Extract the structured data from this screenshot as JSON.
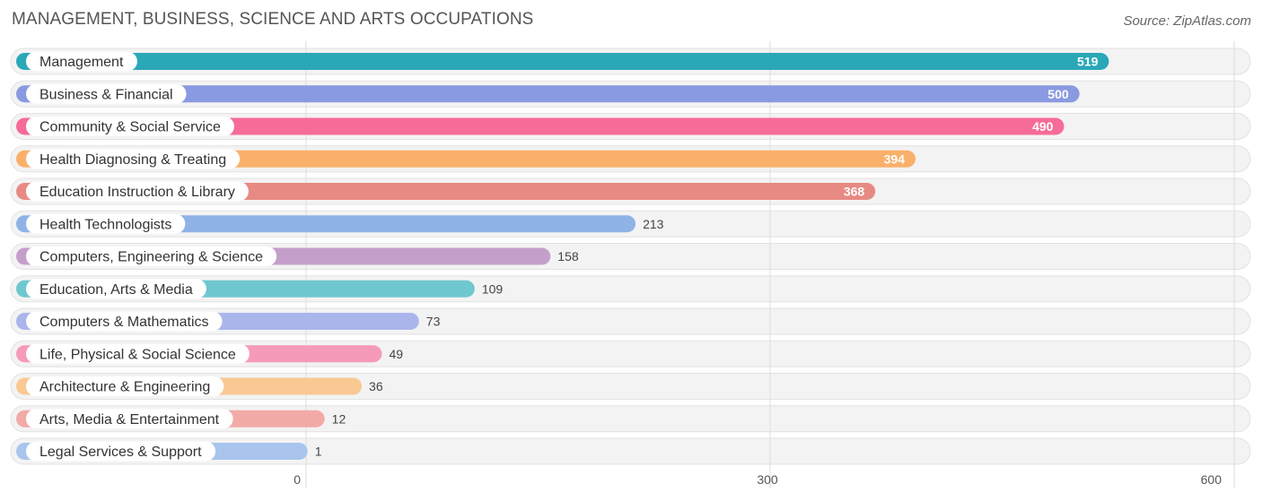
{
  "title": "MANAGEMENT, BUSINESS, SCIENCE AND ARTS OCCUPATIONS",
  "source": "Source: ZipAtlas.com",
  "chart_data": {
    "type": "bar",
    "orientation": "horizontal",
    "title": "MANAGEMENT, BUSINESS, SCIENCE AND ARTS OCCUPATIONS",
    "categories": [
      "Management",
      "Business & Financial",
      "Community & Social Service",
      "Health Diagnosing & Treating",
      "Education Instruction & Library",
      "Health Technologists",
      "Computers, Engineering & Science",
      "Education, Arts & Media",
      "Computers & Mathematics",
      "Life, Physical & Social Science",
      "Architecture & Engineering",
      "Arts, Media & Entertainment",
      "Legal Services & Support"
    ],
    "values": [
      519,
      500,
      490,
      394,
      368,
      213,
      158,
      109,
      73,
      49,
      36,
      12,
      1
    ],
    "colors": [
      "#2aa8b8",
      "#8a9ae0",
      "#f66b97",
      "#f9b06a",
      "#e88a84",
      "#8fb3e6",
      "#c49fca",
      "#6fc7cf",
      "#aab5ec",
      "#f59ab8",
      "#f9c893",
      "#f2aaa6",
      "#a9c5ee"
    ],
    "xticks": [
      0,
      300,
      600
    ],
    "xlim": [
      0,
      600
    ],
    "grid": true,
    "xlabel": "",
    "ylabel": ""
  }
}
